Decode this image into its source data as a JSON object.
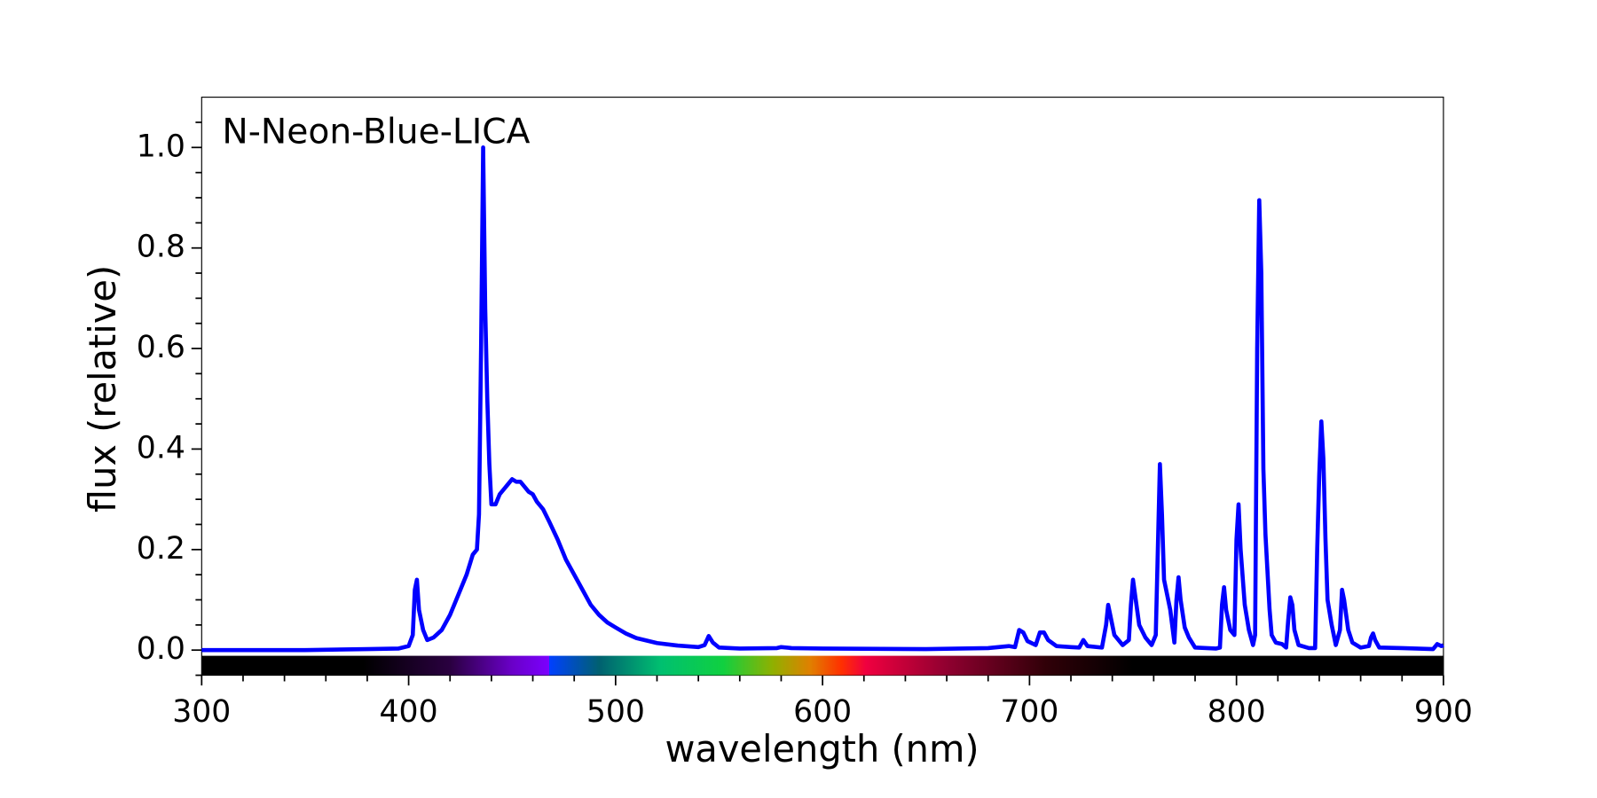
{
  "chart_data": {
    "type": "line",
    "title": "N-Neon-Blue-LICA",
    "x_label": "wavelength (nm)",
    "y_label": "flux (relative)",
    "x": [
      300,
      350,
      380,
      395,
      400,
      402,
      403,
      404,
      405,
      407,
      409,
      412,
      416,
      420,
      424,
      428,
      431,
      433,
      434,
      435,
      436,
      437,
      438,
      439,
      440,
      442,
      444,
      446,
      448,
      450,
      452,
      454,
      456,
      458,
      460,
      462,
      465,
      468,
      472,
      476,
      480,
      484,
      488,
      492,
      496,
      500,
      505,
      510,
      520,
      530,
      540,
      543,
      545,
      547,
      550,
      560,
      578,
      580,
      585,
      600,
      650,
      680,
      690,
      693,
      695,
      697,
      699,
      703,
      705,
      707,
      709,
      713,
      720,
      724,
      726,
      728,
      735,
      737,
      738,
      739,
      741,
      745,
      748,
      749,
      750,
      751,
      753,
      756,
      759,
      761,
      762,
      763,
      764,
      765,
      768,
      770,
      771,
      772,
      773,
      775,
      777,
      780,
      790,
      792,
      793,
      794,
      795,
      797,
      799,
      800,
      801,
      802,
      804,
      806,
      808,
      809,
      810,
      811,
      812,
      813,
      814,
      816,
      817,
      819,
      822,
      824,
      825,
      826,
      827,
      828,
      830,
      835,
      838,
      839,
      840,
      841,
      842,
      843,
      844,
      846,
      848,
      850,
      851,
      852,
      854,
      856,
      860,
      864,
      865,
      866,
      867,
      869,
      880,
      895,
      897,
      899,
      900
    ],
    "series": [
      {
        "name": "N-Neon-Blue-LICA",
        "color": "#0000ff",
        "values": [
          0,
          0,
          0.002,
          0.003,
          0.008,
          0.03,
          0.12,
          0.14,
          0.08,
          0.04,
          0.02,
          0.025,
          0.04,
          0.07,
          0.11,
          0.15,
          0.19,
          0.2,
          0.27,
          0.6,
          1.0,
          0.68,
          0.5,
          0.37,
          0.29,
          0.29,
          0.31,
          0.32,
          0.33,
          0.34,
          0.335,
          0.335,
          0.325,
          0.315,
          0.31,
          0.295,
          0.28,
          0.255,
          0.22,
          0.18,
          0.15,
          0.12,
          0.09,
          0.07,
          0.055,
          0.045,
          0.033,
          0.024,
          0.014,
          0.009,
          0.006,
          0.01,
          0.028,
          0.015,
          0.005,
          0.003,
          0.004,
          0.006,
          0.004,
          0.003,
          0.002,
          0.004,
          0.008,
          0.006,
          0.04,
          0.035,
          0.018,
          0.01,
          0.035,
          0.035,
          0.02,
          0.008,
          0.006,
          0.005,
          0.02,
          0.008,
          0.005,
          0.05,
          0.09,
          0.07,
          0.03,
          0.01,
          0.02,
          0.09,
          0.14,
          0.11,
          0.05,
          0.025,
          0.01,
          0.03,
          0.2,
          0.37,
          0.27,
          0.14,
          0.08,
          0.015,
          0.1,
          0.145,
          0.1,
          0.045,
          0.025,
          0.005,
          0.003,
          0.005,
          0.09,
          0.125,
          0.08,
          0.04,
          0.03,
          0.22,
          0.29,
          0.2,
          0.09,
          0.04,
          0.01,
          0.03,
          0.6,
          0.895,
          0.75,
          0.36,
          0.23,
          0.08,
          0.03,
          0.015,
          0.012,
          0.005,
          0.06,
          0.105,
          0.09,
          0.04,
          0.01,
          0.004,
          0.004,
          0.2,
          0.35,
          0.455,
          0.38,
          0.22,
          0.1,
          0.05,
          0.01,
          0.04,
          0.12,
          0.1,
          0.04,
          0.015,
          0.005,
          0.008,
          0.025,
          0.033,
          0.02,
          0.005,
          0.004,
          0.002,
          0.012,
          0.008,
          0.01
        ]
      }
    ],
    "xlim": [
      300,
      900
    ],
    "ylim": [
      -0.05,
      1.1
    ],
    "xticks": [
      300,
      400,
      500,
      600,
      700,
      800,
      900
    ],
    "yticks": [
      {
        "value": 0,
        "label": "0.0"
      },
      0.2,
      0.4,
      0.6,
      0.8,
      {
        "value": 1,
        "label": "1.0"
      }
    ],
    "xminorticks": [
      320,
      340,
      360,
      380,
      420,
      440,
      460,
      480,
      520,
      540,
      560,
      580,
      620,
      640,
      660,
      680,
      720,
      740,
      760,
      780,
      820,
      840,
      860,
      880
    ],
    "yminorticks": [
      -0.05,
      0.05,
      0.1,
      0.15,
      0.25,
      0.3,
      0.35,
      0.45,
      0.5,
      0.55,
      0.65,
      0.7,
      0.75,
      0.85,
      0.9,
      0.95,
      1.05
    ]
  }
}
